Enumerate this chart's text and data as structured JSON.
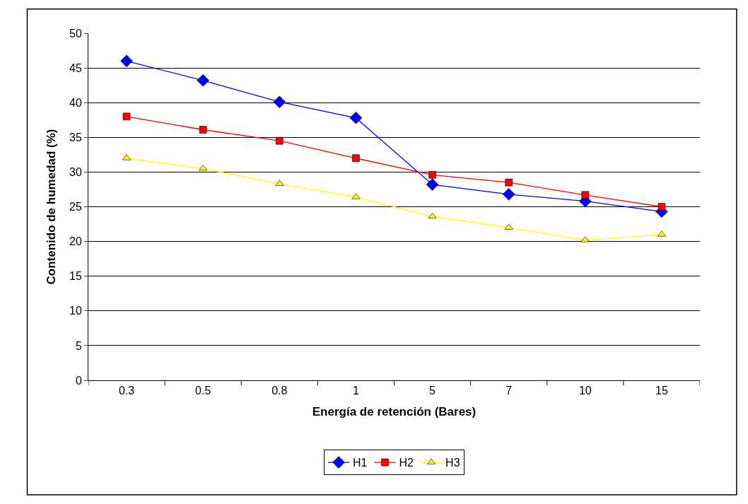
{
  "chart_data": {
    "type": "line",
    "xlabel": "Energía de retención (Bares)",
    "ylabel": "Contenido de humedad (%)",
    "categories": [
      "0.3",
      "0.5",
      "0.8",
      "1",
      "5",
      "7",
      "10",
      "15"
    ],
    "series": [
      {
        "name": "H1",
        "color": "#0000ff",
        "marker": "diamond",
        "values": [
          46.0,
          43.2,
          40.1,
          37.8,
          28.2,
          26.8,
          25.8,
          24.3
        ]
      },
      {
        "name": "H2",
        "color": "#ff0000",
        "marker": "square",
        "values": [
          38.0,
          36.1,
          34.5,
          32.0,
          29.6,
          28.5,
          26.7,
          25.0
        ]
      },
      {
        "name": "H3",
        "color": "#ffff00",
        "marker": "triangle",
        "values": [
          32.0,
          30.5,
          28.3,
          26.4,
          23.6,
          22.0,
          20.2,
          21.0
        ]
      }
    ],
    "ylim": [
      0,
      50
    ],
    "yticks": [
      0,
      5,
      10,
      15,
      20,
      25,
      30,
      35,
      40,
      45,
      50
    ],
    "grid": "y",
    "legend": "bottom",
    "line_style": "solid"
  }
}
